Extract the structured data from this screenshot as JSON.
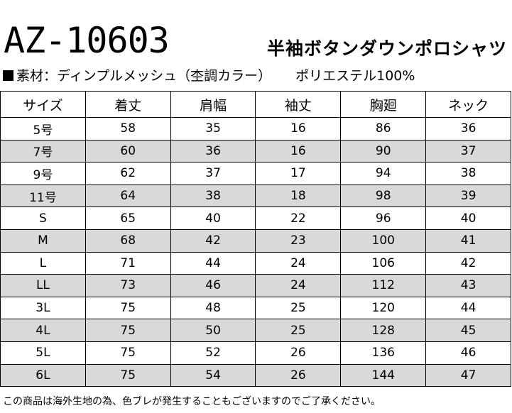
{
  "header": {
    "code": "AZ-10603",
    "name": "半袖ボタンダウンポロシャツ"
  },
  "material": {
    "label": "素材：ディンプルメッシュ（杢調カラー）",
    "composition": "ポリエステル100%"
  },
  "table": {
    "columns": [
      "サイズ",
      "着丈",
      "肩幅",
      "袖丈",
      "胸廻",
      "ネック"
    ],
    "rows": [
      [
        "5号",
        "58",
        "35",
        "16",
        "86",
        "36"
      ],
      [
        "7号",
        "60",
        "36",
        "16",
        "90",
        "37"
      ],
      [
        "9号",
        "62",
        "37",
        "17",
        "94",
        "38"
      ],
      [
        "11号",
        "64",
        "38",
        "18",
        "98",
        "39"
      ],
      [
        "S",
        "65",
        "40",
        "22",
        "96",
        "40"
      ],
      [
        "M",
        "68",
        "42",
        "23",
        "100",
        "41"
      ],
      [
        "L",
        "71",
        "44",
        "24",
        "106",
        "42"
      ],
      [
        "LL",
        "73",
        "46",
        "24",
        "112",
        "43"
      ],
      [
        "3L",
        "75",
        "48",
        "25",
        "120",
        "44"
      ],
      [
        "4L",
        "75",
        "50",
        "25",
        "128",
        "45"
      ],
      [
        "5L",
        "75",
        "52",
        "26",
        "136",
        "46"
      ],
      [
        "6L",
        "75",
        "54",
        "26",
        "144",
        "47"
      ]
    ],
    "alt_row_color": "#d9d9d9"
  },
  "footer": {
    "note": "この商品は海外生地の為、色ブレが発生することもございますのでご了承ください。"
  }
}
